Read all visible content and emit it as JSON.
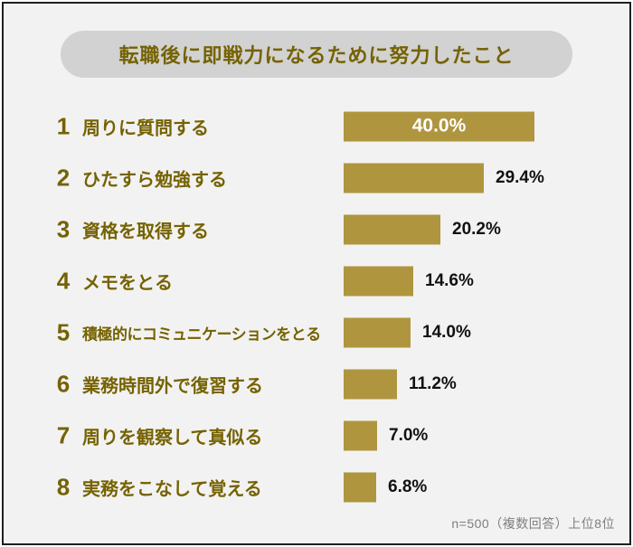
{
  "title": "転職後に即戦力になるために努力したこと",
  "footnote": "n=500（複数回答）上位8位",
  "colors": {
    "bar": "#AF953E",
    "heading_text": "#756200",
    "pill_background": "#D2D2D2",
    "page_background": "#F2F2F2",
    "frame_border": "#1F1F1F",
    "value_label_outside": "#111111",
    "value_label_inside": "#FFFFFF",
    "footnote_text": "#7E7E7E"
  },
  "chart_data": {
    "type": "bar",
    "orientation": "horizontal",
    "title": "転職後に即戦力になるために努力したこと",
    "ranks": [
      1,
      2,
      3,
      4,
      5,
      6,
      7,
      8
    ],
    "categories": [
      "周りに質問する",
      "ひたすら勉強する",
      "資格を取得する",
      "メモをとる",
      "積極的にコミュニケーションをとる",
      "業務時間外で復習する",
      "周りを観察して真似る",
      "実務をこなして覚える"
    ],
    "values": [
      40.0,
      29.4,
      20.2,
      14.6,
      14.0,
      11.2,
      7.0,
      6.8
    ],
    "value_labels": [
      "40.0%",
      "29.4%",
      "20.2%",
      "14.6%",
      "14.0%",
      "11.2%",
      "7.0%",
      "6.8%"
    ],
    "xlim": [
      0,
      45
    ],
    "grid": false,
    "legend": false,
    "note": "n=500（複数回答）上位8位"
  }
}
